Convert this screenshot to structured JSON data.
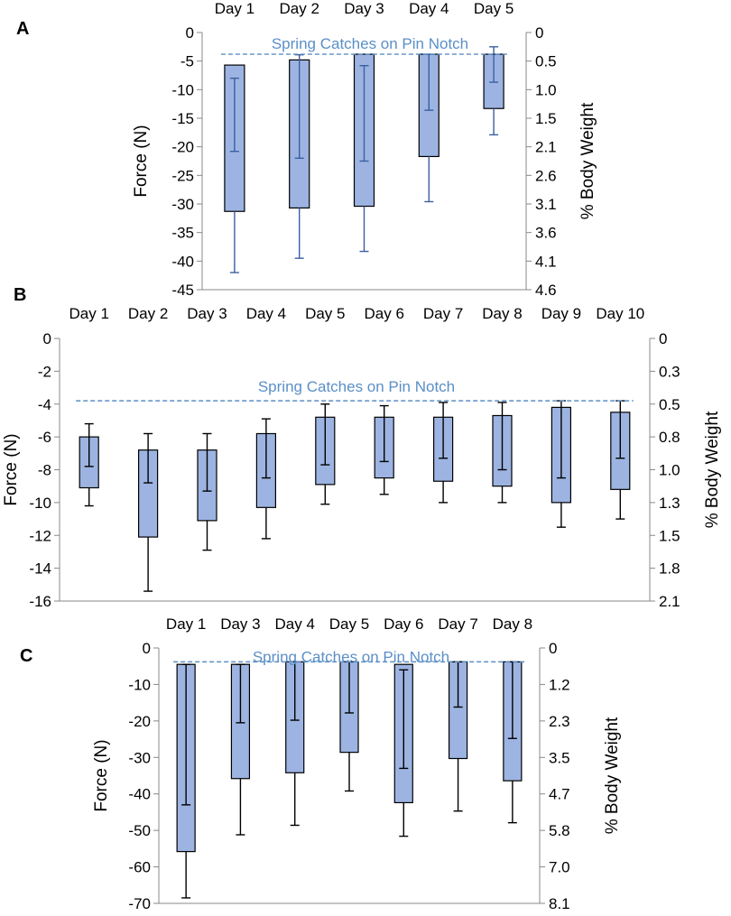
{
  "chart_data": [
    {
      "panel": "A",
      "type": "bar",
      "categories": [
        "Day 1",
        "Day 2",
        "Day 3",
        "Day 4",
        "Day 5"
      ],
      "bar_top": [
        -5.7,
        -4.8,
        -3.8,
        -3.8,
        -3.8
      ],
      "values": [
        -31.3,
        -30.7,
        -30.4,
        -21.7,
        -13.3
      ],
      "error_top": [
        -8.0,
        -3.9,
        -5.8,
        -3.8,
        -2.5
      ],
      "error_upper_inner": [
        -20.8,
        -22.0,
        -22.5,
        -13.6,
        -8.7
      ],
      "error_bottom": [
        -42.0,
        -39.5,
        -38.3,
        -29.6,
        -17.9
      ],
      "reference_line": -3.8,
      "reference_label": "Spring Catches on Pin Notch",
      "ylabel": "Force (N)",
      "y2label": "% Body Weight",
      "ylim": [
        -45,
        0
      ],
      "yticks": [
        "0",
        "-5",
        "-10",
        "-15",
        "-20",
        "-25",
        "-30",
        "-35",
        "-40",
        "-45"
      ],
      "y2ticks": [
        "0",
        "0.5",
        "1.0",
        "1.5",
        "2.1",
        "2.6",
        "3.1",
        "3.6",
        "4.1",
        "4.6"
      ],
      "color": "#9db4e2",
      "error_color": "#3a5fa0"
    },
    {
      "panel": "B",
      "type": "bar",
      "categories": [
        "Day 1",
        "Day 2",
        "Day 3",
        "Day 4",
        "Day 5",
        "Day 6",
        "Day 7",
        "Day 8",
        "Day 9",
        "Day 10"
      ],
      "bar_top": [
        -6.0,
        -6.8,
        -6.8,
        -5.8,
        -4.8,
        -4.8,
        -4.8,
        -4.7,
        -4.2,
        -4.5
      ],
      "values": [
        -9.1,
        -12.1,
        -11.1,
        -10.3,
        -8.9,
        -8.5,
        -8.7,
        -9.0,
        -10.0,
        -9.2
      ],
      "error_top": [
        -5.2,
        -5.8,
        -5.8,
        -4.9,
        -4.0,
        -4.1,
        -3.9,
        -3.9,
        -3.8,
        -3.8
      ],
      "error_upper_inner": [
        -7.8,
        -8.8,
        -9.3,
        -8.5,
        -7.7,
        -7.5,
        -7.3,
        -8.0,
        -8.5,
        -7.3
      ],
      "error_bottom": [
        -10.2,
        -15.4,
        -12.9,
        -12.2,
        -10.1,
        -9.5,
        -10.0,
        -10.0,
        -11.5,
        -11.0
      ],
      "reference_line": -3.8,
      "reference_label": "Spring Catches on Pin Notch",
      "ylabel": "Force (N)",
      "y2label": "% Body Weight",
      "ylim": [
        -16,
        0
      ],
      "yticks": [
        "0",
        "-2",
        "-4",
        "-6",
        "-8",
        "-10",
        "-12",
        "-14",
        "-16"
      ],
      "y2ticks": [
        "0",
        "0.3",
        "0.5",
        "0.8",
        "1.0",
        "1.3",
        "1.5",
        "1.8",
        "2.1"
      ],
      "color": "#9db4e2",
      "error_color": "#000000"
    },
    {
      "panel": "C",
      "type": "bar",
      "categories": [
        "Day 1",
        "Day 3",
        "Day 4",
        "Day 5",
        "Day 6",
        "Day 7",
        "Day 8"
      ],
      "bar_top": [
        -4.5,
        -4.5,
        -3.8,
        -3.8,
        -4.5,
        -3.8,
        -3.8
      ],
      "values": [
        -55.8,
        -35.8,
        -34.2,
        -28.6,
        -42.4,
        -30.3,
        -36.4
      ],
      "error_top": [
        -4.5,
        -4.5,
        -3.8,
        -3.8,
        -6.0,
        -3.8,
        -3.8
      ],
      "error_upper_inner": [
        -43.0,
        -20.5,
        -19.8,
        -17.8,
        -33.0,
        -16.2,
        -24.8
      ],
      "error_bottom": [
        -68.5,
        -51.2,
        -48.6,
        -39.2,
        -51.6,
        -44.7,
        -47.9
      ],
      "reference_line": -3.8,
      "reference_label": "Spring Catches on Pin Notch",
      "ylabel": "Force (N)",
      "y2label": "% Body Weight",
      "ylim": [
        -70,
        0
      ],
      "yticks": [
        "0",
        "-10",
        "-20",
        "-30",
        "-40",
        "-50",
        "-60",
        "-70"
      ],
      "y2ticks": [
        "0",
        "1.2",
        "2.3",
        "3.5",
        "4.7",
        "5.8",
        "7.0",
        "8.1"
      ],
      "color": "#9db4e2",
      "error_color": "#000000"
    }
  ]
}
